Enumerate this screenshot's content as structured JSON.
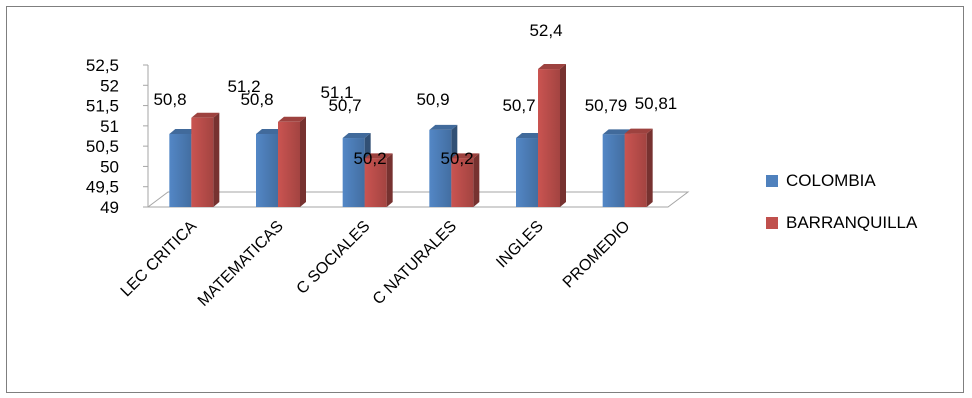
{
  "chart_data": {
    "type": "bar",
    "categories": [
      "LEC CRITICA",
      "MATEMATICAS",
      "C SOCIALES",
      "C NATURALES",
      "INGLES",
      "PROMEDIO"
    ],
    "series": [
      {
        "name": "COLOMBIA",
        "values": [
          50.8,
          50.8,
          50.7,
          50.9,
          50.7,
          50.79
        ],
        "labels": [
          "50,8",
          "50,8",
          "50,7",
          "50,9",
          "50,7",
          "50,79"
        ],
        "color": "#4F81BD"
      },
      {
        "name": "BARRANQUILLA",
        "values": [
          51.2,
          51.1,
          50.2,
          50.2,
          52.4,
          50.81
        ],
        "labels": [
          "51,2",
          "51,1",
          "50,2",
          "50,2",
          "52,4",
          "50,81"
        ],
        "color": "#C0504D"
      }
    ],
    "ylim": [
      49,
      52.5
    ],
    "yticks": [
      "49",
      "49,5",
      "50",
      "50,5",
      "51",
      "51,5",
      "52",
      "52,5"
    ],
    "legend_position": "right",
    "style": "3d-clustered-column"
  }
}
